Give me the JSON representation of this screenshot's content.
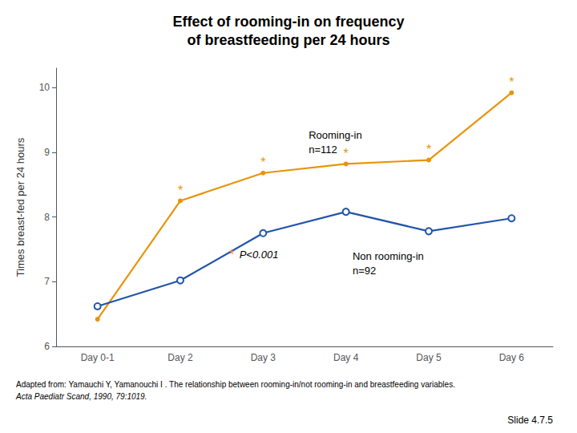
{
  "chart_data": {
    "type": "line",
    "title": "Effect of rooming-in on frequency\nof breastfeeding per 24 hours",
    "categories": [
      "Day 0-1",
      "Day 2",
      "Day 3",
      "Day 4",
      "Day 5",
      "Day 6"
    ],
    "ylabel": "Times breast-fed per 24 hours",
    "ylim": [
      6,
      10.3
    ],
    "yticks": [
      6,
      7,
      8,
      9,
      10
    ],
    "grid": false,
    "series": [
      {
        "name": "Rooming-in",
        "color": "#E8940A",
        "marker": "filled circle",
        "values": [
          6.42,
          8.25,
          8.68,
          8.82,
          8.88,
          9.92
        ],
        "point_labels": [
          null,
          "*",
          "*",
          "*",
          "*",
          "*"
        ]
      },
      {
        "name": "Non rooming-in",
        "color": "#2255AA",
        "marker": "open circle",
        "values": [
          6.62,
          7.02,
          7.75,
          8.08,
          7.78,
          7.98
        ]
      }
    ],
    "annotations": [
      {
        "text": [
          "Rooming-in",
          "n=112"
        ],
        "x": 2.55,
        "y": 9.38
      },
      {
        "text": [
          "Non rooming-in",
          "n=92"
        ],
        "x": 3.08,
        "y": 7.5
      },
      {
        "marker": "*",
        "color": "#E8940A",
        "text": [
          " P<0.001"
        ],
        "x": 1.62,
        "y": 7.42
      }
    ],
    "footnote": [
      "Adapted from: Yamauchi Y, Yamanouchi I . The relationship between rooming-in/not rooming-in and breastfeeding variables.",
      "Acta Paediatr Scand, 1990, 79:1019."
    ],
    "slide_label": "Slide 4.7.5"
  }
}
